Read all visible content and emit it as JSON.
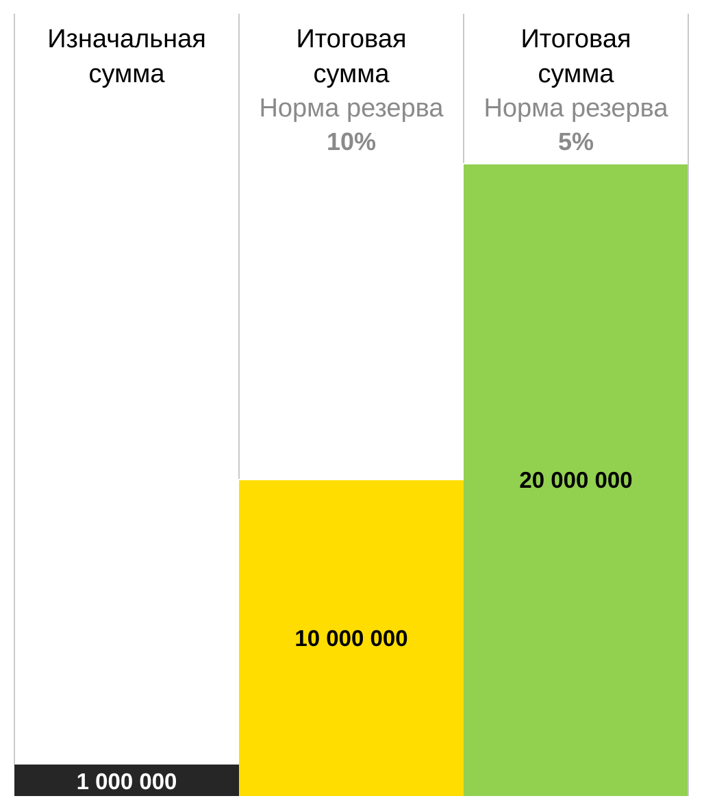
{
  "chart_data": {
    "type": "bar",
    "categories": [
      "Изначальная сумма",
      "Итоговая сумма",
      "Итоговая сумма"
    ],
    "columns": [
      {
        "title_line1": "Изначальная",
        "title_line2": "сумма",
        "sub_line": "",
        "rate_line": "",
        "value": 1000000,
        "value_label": "1 000 000",
        "color": "#262626",
        "label_color": "#ffffff"
      },
      {
        "title_line1": "Итоговая",
        "title_line2": "сумма",
        "sub_line": "Норма резерва",
        "rate_line": "10%",
        "value": 10000000,
        "value_label": "10 000 000",
        "color": "#ffdd00",
        "label_color": "#000000"
      },
      {
        "title_line1": "Итоговая",
        "title_line2": "сумма",
        "sub_line": "Норма резерва",
        "rate_line": "5%",
        "value": 20000000,
        "value_label": "20 000 000",
        "color": "#92d050",
        "label_color": "#000000"
      }
    ],
    "values": [
      1000000,
      10000000,
      20000000
    ],
    "ylim": [
      0,
      20000000
    ],
    "grid": false,
    "legend": "none"
  }
}
